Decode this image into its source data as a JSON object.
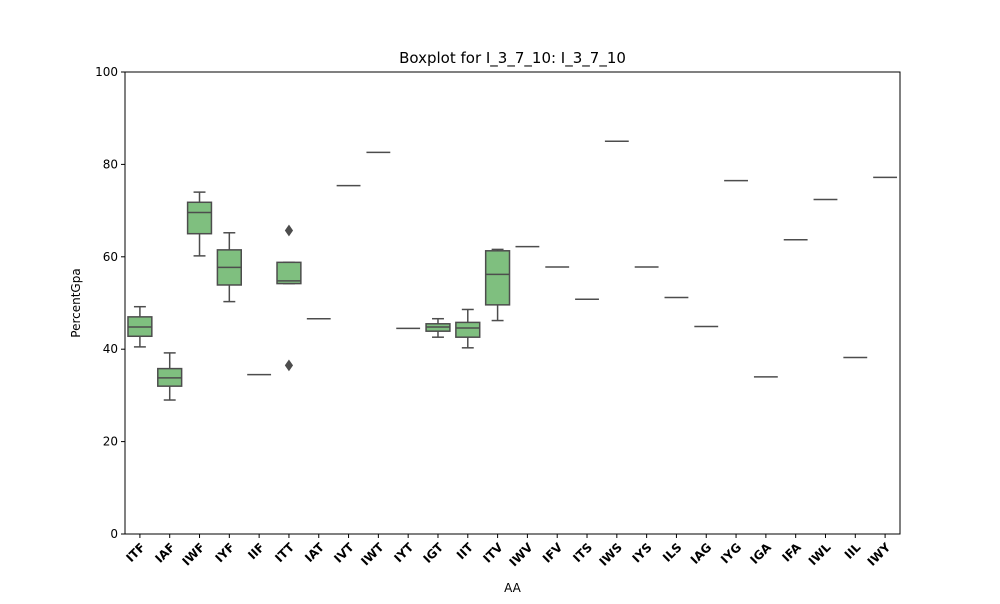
{
  "chart_data": {
    "type": "box",
    "title": "Boxplot for I_3_7_10: I_3_7_10",
    "xlabel": "AA",
    "ylabel": "PercentGpa",
    "ylim": [
      0,
      100
    ],
    "yticks": [
      0,
      20,
      40,
      60,
      80,
      100
    ],
    "grid": false,
    "box_color": "#7fbf7f",
    "line_color": "#4d4d4d",
    "categories": [
      "ITF",
      "IAF",
      "IWF",
      "IYF",
      "IIF",
      "ITT",
      "IAT",
      "IVT",
      "IWT",
      "IYT",
      "IGT",
      "IIT",
      "ITV",
      "IWV",
      "IFV",
      "ITS",
      "IWS",
      "IYS",
      "ILS",
      "IAG",
      "IYG",
      "IGA",
      "IFA",
      "IWL",
      "IIL",
      "IWY"
    ],
    "boxes": [
      {
        "category": "ITF",
        "whislo": 40.5,
        "q1": 42.8,
        "median": 44.8,
        "q3": 47.0,
        "whishi": 49.2,
        "fliers": []
      },
      {
        "category": "IAF",
        "whislo": 29.0,
        "q1": 32.0,
        "median": 33.8,
        "q3": 35.8,
        "whishi": 39.2,
        "fliers": []
      },
      {
        "category": "IWF",
        "whislo": 60.2,
        "q1": 65.0,
        "median": 69.6,
        "q3": 71.8,
        "whishi": 74.0,
        "fliers": []
      },
      {
        "category": "IYF",
        "whislo": 50.3,
        "q1": 53.9,
        "median": 57.7,
        "q3": 61.5,
        "whishi": 65.2,
        "fliers": []
      },
      {
        "category": "IIF",
        "whislo": 34.5,
        "q1": 34.5,
        "median": 34.5,
        "q3": 34.5,
        "whishi": 34.5,
        "fliers": []
      },
      {
        "category": "ITT",
        "whislo": 54.2,
        "q1": 54.2,
        "median": 54.8,
        "q3": 58.8,
        "whishi": 58.8,
        "fliers": [
          36.5,
          65.7
        ]
      },
      {
        "category": "IAT",
        "whislo": 46.6,
        "q1": 46.6,
        "median": 46.6,
        "q3": 46.6,
        "whishi": 46.6,
        "fliers": []
      },
      {
        "category": "IVT",
        "whislo": 75.4,
        "q1": 75.4,
        "median": 75.4,
        "q3": 75.4,
        "whishi": 75.4,
        "fliers": []
      },
      {
        "category": "IWT",
        "whislo": 82.6,
        "q1": 82.6,
        "median": 82.6,
        "q3": 82.6,
        "whishi": 82.6,
        "fliers": []
      },
      {
        "category": "IYT",
        "whislo": 44.5,
        "q1": 44.5,
        "median": 44.5,
        "q3": 44.5,
        "whishi": 44.5,
        "fliers": []
      },
      {
        "category": "IGT",
        "whislo": 42.6,
        "q1": 43.9,
        "median": 44.8,
        "q3": 45.5,
        "whishi": 46.6,
        "fliers": []
      },
      {
        "category": "IIT",
        "whislo": 40.3,
        "q1": 42.6,
        "median": 44.6,
        "q3": 45.8,
        "whishi": 48.6,
        "fliers": []
      },
      {
        "category": "ITV",
        "whislo": 46.2,
        "q1": 49.6,
        "median": 56.2,
        "q3": 61.3,
        "whishi": 61.6,
        "fliers": []
      },
      {
        "category": "IWV",
        "whislo": 62.2,
        "q1": 62.2,
        "median": 62.2,
        "q3": 62.2,
        "whishi": 62.2,
        "fliers": []
      },
      {
        "category": "IFV",
        "whislo": 57.8,
        "q1": 57.8,
        "median": 57.8,
        "q3": 57.8,
        "whishi": 57.8,
        "fliers": []
      },
      {
        "category": "ITS",
        "whislo": 50.8,
        "q1": 50.8,
        "median": 50.8,
        "q3": 50.8,
        "whishi": 50.8,
        "fliers": []
      },
      {
        "category": "IWS",
        "whislo": 85.0,
        "q1": 85.0,
        "median": 85.0,
        "q3": 85.0,
        "whishi": 85.0,
        "fliers": []
      },
      {
        "category": "IYS",
        "whislo": 57.8,
        "q1": 57.8,
        "median": 57.8,
        "q3": 57.8,
        "whishi": 57.8,
        "fliers": []
      },
      {
        "category": "ILS",
        "whislo": 51.2,
        "q1": 51.2,
        "median": 51.2,
        "q3": 51.2,
        "whishi": 51.2,
        "fliers": []
      },
      {
        "category": "IAG",
        "whislo": 44.9,
        "q1": 44.9,
        "median": 44.9,
        "q3": 44.9,
        "whishi": 44.9,
        "fliers": []
      },
      {
        "category": "IYG",
        "whislo": 76.5,
        "q1": 76.5,
        "median": 76.5,
        "q3": 76.5,
        "whishi": 76.5,
        "fliers": []
      },
      {
        "category": "IGA",
        "whislo": 34.0,
        "q1": 34.0,
        "median": 34.0,
        "q3": 34.0,
        "whishi": 34.0,
        "fliers": []
      },
      {
        "category": "IFA",
        "whislo": 63.7,
        "q1": 63.7,
        "median": 63.7,
        "q3": 63.7,
        "whishi": 63.7,
        "fliers": []
      },
      {
        "category": "IWL",
        "whislo": 72.4,
        "q1": 72.4,
        "median": 72.4,
        "q3": 72.4,
        "whishi": 72.4,
        "fliers": []
      },
      {
        "category": "IIL",
        "whislo": 38.2,
        "q1": 38.2,
        "median": 38.2,
        "q3": 38.2,
        "whishi": 38.2,
        "fliers": []
      },
      {
        "category": "IWY",
        "whislo": 77.2,
        "q1": 77.2,
        "median": 77.2,
        "q3": 77.2,
        "whishi": 77.2,
        "fliers": []
      }
    ]
  }
}
